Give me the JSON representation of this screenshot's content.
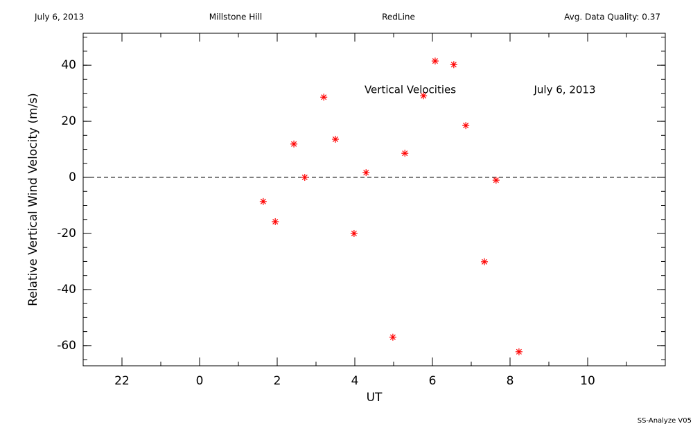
{
  "chart_data": {
    "type": "scatter",
    "header": [
      "July 6, 2013",
      "Millstone Hill",
      "RedLine",
      "Avg. Data Quality: 0.37"
    ],
    "annotations": [
      "Vertical Velocities",
      "July 6, 2013"
    ],
    "footer": "SS-Analyze V05",
    "xlabel": "UT",
    "ylabel": "Relative Vertical Wind Velocity (m/s)",
    "x": [
      1.64,
      1.95,
      2.43,
      2.71,
      3.2,
      3.5,
      3.98,
      4.29,
      4.98,
      5.29,
      5.77,
      6.07,
      6.55,
      6.86,
      7.34,
      7.64,
      8.23
    ],
    "values": [
      -8.6,
      -15.8,
      11.9,
      0,
      28.6,
      13.6,
      -20,
      1.7,
      -57,
      8.6,
      29.1,
      41.5,
      40.2,
      18.5,
      -30.1,
      -1,
      -62.2
    ],
    "color": "#ff0000",
    "xlim": [
      -3,
      12
    ],
    "xticks": [
      {
        "value": -2,
        "label": "22"
      },
      0,
      2,
      4,
      6,
      8,
      10
    ],
    "ylim": [
      -67.2,
      51.4
    ],
    "yticks": [
      -60,
      -40,
      -20,
      0,
      20,
      40
    ],
    "x_minor_step": 1,
    "y_minor_step": 5,
    "reference_line": 0
  }
}
